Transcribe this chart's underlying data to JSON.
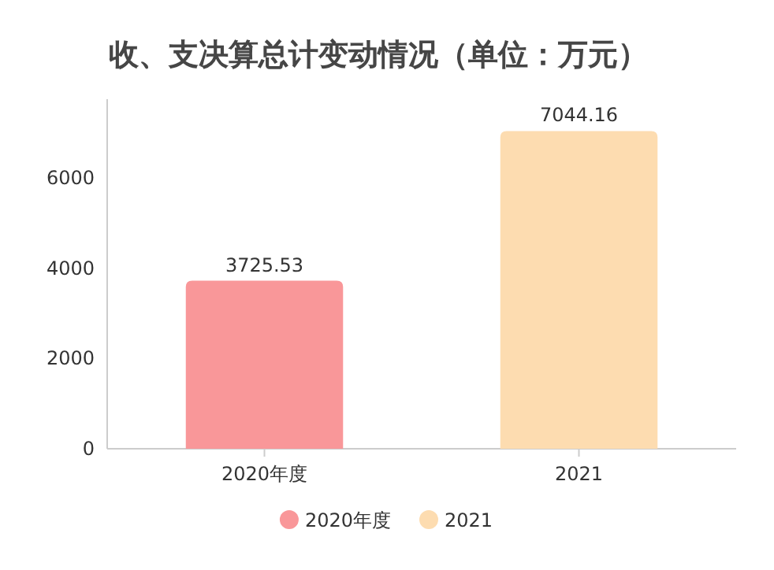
{
  "chart_data": {
    "type": "bar",
    "title": "收、支决算总计变动情况（单位：万元）",
    "categories": [
      "2020年度",
      "2021"
    ],
    "series": [
      {
        "name": "2020年度",
        "color": "#f99799",
        "values": [
          3725.53,
          null
        ]
      },
      {
        "name": "2021",
        "color": "#fddcb0",
        "values": [
          null,
          7044.16
        ]
      }
    ],
    "ylim": [
      0,
      7750
    ],
    "yticks": [
      0,
      2000,
      4000,
      6000
    ],
    "data_labels": true,
    "legend": "bottom",
    "grid": false
  }
}
